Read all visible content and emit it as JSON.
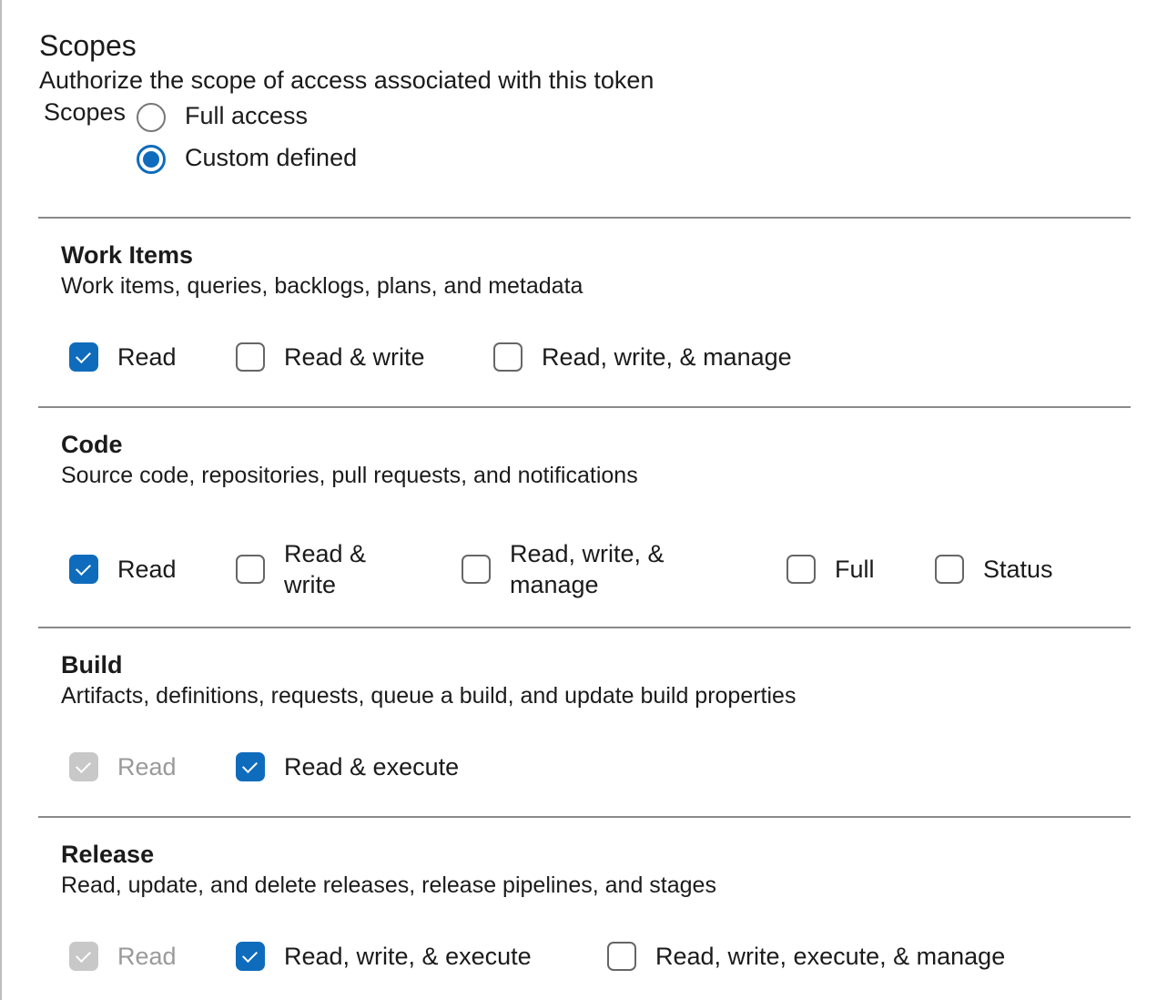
{
  "header": {
    "title": "Scopes",
    "subtitle": "Authorize the scope of access associated with this token",
    "scopes_label": "Scopes"
  },
  "scope_options": [
    {
      "label": "Full access",
      "selected": false
    },
    {
      "label": "Custom defined",
      "selected": true
    }
  ],
  "accent_color": "#0f6cbd",
  "sections": [
    {
      "title": "Work Items",
      "description": "Work items, queries, backlogs, plans, and metadata",
      "options": [
        {
          "label": "Read",
          "checked": true,
          "disabled": false
        },
        {
          "label": "Read & write",
          "checked": false,
          "disabled": false
        },
        {
          "label": "Read, write, & manage",
          "checked": false,
          "disabled": false
        }
      ]
    },
    {
      "title": "Code",
      "description": "Source code, repositories, pull requests, and notifications",
      "options": [
        {
          "label": "Read",
          "checked": true,
          "disabled": false
        },
        {
          "label": "Read & write",
          "checked": false,
          "disabled": false
        },
        {
          "label": "Read, write, & manage",
          "checked": false,
          "disabled": false
        },
        {
          "label": "Full",
          "checked": false,
          "disabled": false
        },
        {
          "label": "Status",
          "checked": false,
          "disabled": false
        }
      ]
    },
    {
      "title": "Build",
      "description": "Artifacts, definitions, requests, queue a build, and update build properties",
      "options": [
        {
          "label": "Read",
          "checked": true,
          "disabled": true
        },
        {
          "label": "Read & execute",
          "checked": true,
          "disabled": false
        }
      ]
    },
    {
      "title": "Release",
      "description": "Read, update, and delete releases, release pipelines, and stages",
      "options": [
        {
          "label": "Read",
          "checked": true,
          "disabled": true
        },
        {
          "label": "Read, write, & execute",
          "checked": true,
          "disabled": false
        },
        {
          "label": "Read, write, execute, & manage",
          "checked": false,
          "disabled": false
        }
      ]
    }
  ]
}
